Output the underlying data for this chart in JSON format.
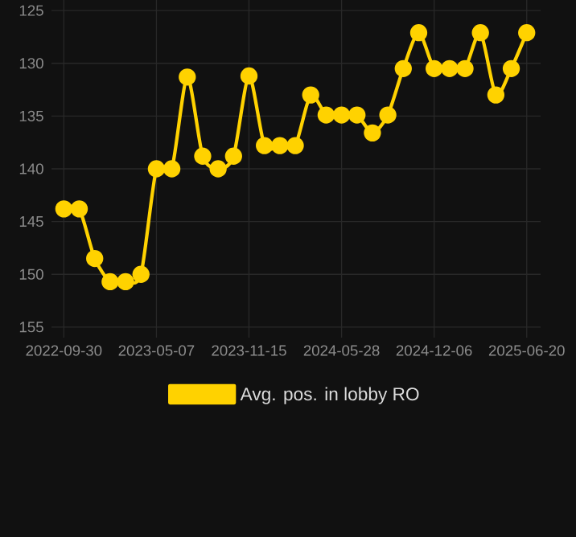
{
  "chart_data": {
    "type": "line",
    "categories": [
      "2022-09-30",
      null,
      null,
      null,
      null,
      null,
      "2023-05-07",
      null,
      null,
      null,
      null,
      null,
      "2023-11-15",
      null,
      null,
      null,
      null,
      null,
      "2024-05-28",
      null,
      null,
      null,
      null,
      null,
      "2024-12-06",
      null,
      null,
      null,
      null,
      null,
      "2025-06-20"
    ],
    "series": [
      {
        "name": "Avg. pos. in lobby RO",
        "color": "#ffd200",
        "values": [
          143.8,
          143.8,
          148.5,
          150.7,
          150.7,
          150.0,
          140.0,
          140.0,
          131.3,
          138.8,
          140.0,
          138.8,
          131.2,
          137.8,
          137.8,
          137.8,
          133.0,
          134.9,
          134.9,
          134.9,
          136.6,
          134.9,
          130.5,
          127.1,
          130.5,
          130.5,
          130.5,
          127.1,
          133.0,
          130.5,
          127.1
        ]
      }
    ],
    "ylim": [
      156,
      124
    ],
    "yticks": [
      125,
      130,
      135,
      140,
      145,
      150,
      155
    ],
    "grid": true,
    "legend": "bottom",
    "marker": "circle",
    "line_style": "solid"
  }
}
